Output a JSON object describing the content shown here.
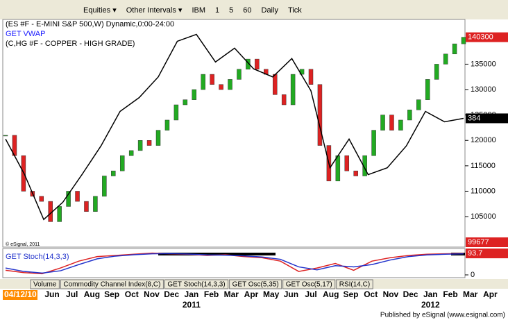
{
  "toolbar": {
    "items": [
      "Equities ▾",
      "Other Intervals ▾",
      "IBM",
      "1",
      "5",
      "60",
      "Daily",
      "Tick"
    ]
  },
  "chart_data": {
    "type": "candlestick",
    "legend": [
      "(ES #F - E-MINI S&P 500,W) Dynamic,0:00-24:00",
      "GET VWAP",
      "(C,HG #F - COPPER - HIGH GRADE)"
    ],
    "copyright": "© eSignal, 2011",
    "series": [
      {
        "name": "(ES #F - E-MINI S&P 500,W) Dynamic,0:00-24:00",
        "up_color": "#22aa22",
        "down_color": "#dd2222",
        "values": [
          121000,
          117000,
          110000,
          109000,
          108000,
          104000,
          107000,
          110000,
          108000,
          106000,
          109000,
          113000,
          114000,
          117000,
          118000,
          120000,
          119000,
          122000,
          124000,
          127000,
          128000,
          130000,
          133000,
          131000,
          130000,
          132000,
          134000,
          136000,
          134000,
          133000,
          129000,
          127000,
          133000,
          134000,
          131000,
          119000,
          112000,
          117000,
          114000,
          113000,
          117000,
          122000,
          125000,
          122000,
          124000,
          126000,
          128000,
          132000,
          135000,
          137000,
          139000,
          140300
        ]
      },
      {
        "name": "(C,HG #F - COPPER - HIGH GRADE)",
        "axis": "y2",
        "color": "#000000",
        "values": [
          366,
          335,
          296,
          311,
          335,
          360,
          390,
          402,
          420,
          451,
          457,
          433,
          445,
          427,
          420,
          436,
          408,
          341,
          366,
          335,
          341,
          360,
          390,
          381,
          384
        ]
      }
    ],
    "vwap": {
      "name": "GET VWAP",
      "value": 99677
    },
    "ylim": [
      99000,
      143800
    ],
    "yticks": [
      105000,
      110000,
      115000,
      120000,
      125000,
      130000,
      135000
    ],
    "y2lim": [
      272,
      470
    ],
    "x_labels": [
      "04/12/10",
      "Jun",
      "Jul",
      "Aug",
      "Sep",
      "Oct",
      "Nov",
      "Dec",
      "Jan",
      "Feb",
      "Mar",
      "Apr",
      "May",
      "Jun",
      "Jul",
      "Aug",
      "Sep",
      "Oct",
      "Nov",
      "Dec",
      "Jan",
      "Feb",
      "Mar",
      "Apr"
    ],
    "year_labels": [
      "2011",
      "2012"
    ],
    "indicator": {
      "name": "GET Stoch(14,3,3)",
      "ylim": [
        0,
        100
      ],
      "yticks": [
        0
      ],
      "k_color": "#dd2222",
      "d_color": "#2233cc",
      "k": [
        20,
        10,
        5,
        30,
        60,
        80,
        85,
        90,
        95,
        92,
        90,
        85,
        88,
        80,
        75,
        60,
        15,
        30,
        50,
        20,
        60,
        75,
        85,
        90,
        92,
        93.7
      ],
      "d": [
        30,
        15,
        8,
        18,
        45,
        70,
        82,
        88,
        92,
        93,
        91,
        87,
        86,
        83,
        78,
        68,
        35,
        22,
        40,
        35,
        45,
        65,
        80,
        87,
        90,
        92
      ]
    }
  },
  "tabs": [
    "Volume",
    "Commodity Channel Index(8,C)",
    "GET Stoch(14,3,3)",
    "GET Osc(5,35)",
    "GET Osc(5,17)",
    "RSI(14,C)"
  ],
  "footer": "Published by eSignal (www.esignal.com)"
}
